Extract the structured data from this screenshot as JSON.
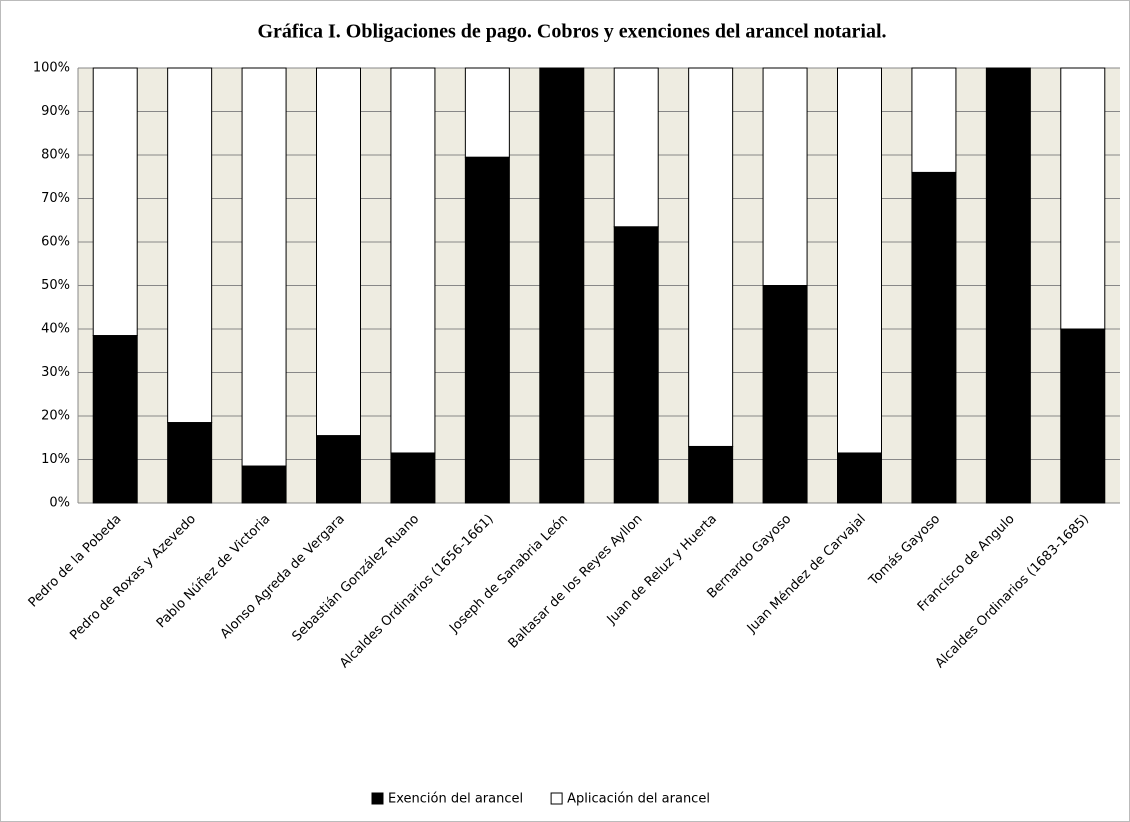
{
  "chart_data": {
    "type": "stacked_bar",
    "title": "Gráfica I. Obligaciones de pago. Cobros y exenciones del arancel notarial.",
    "categories": [
      "Pedro de la Pobeda",
      "Pedro de Roxas y Azevedo",
      "Pablo Núñez de Victoria",
      "Alonso Agreda de Vergara",
      "Sebastián González Ruano",
      "Alcaldes Ordinarios (1656-1661)",
      "Joseph de Sanabria León",
      "Baltasar de los Reyes Ayllon",
      "Juan de Reluz y Huerta",
      "Bernardo Gayoso",
      "Juan Méndez de Carvajal",
      "Tomás Gayoso",
      "Francisco de Angulo",
      "Alcaldes Ordinarios (1683-1685)"
    ],
    "series": [
      {
        "name": "Exención del arancel",
        "color": "#000000",
        "values": [
          38.5,
          18.5,
          8.5,
          15.5,
          11.5,
          79.5,
          100,
          63.5,
          13,
          50,
          11.5,
          76,
          100,
          40
        ]
      },
      {
        "name": "Aplicación del arancel",
        "color": "#ffffff",
        "values": [
          61.5,
          81.5,
          91.5,
          84.5,
          88.5,
          20.5,
          0,
          36.5,
          87,
          50,
          88.5,
          24,
          0,
          60
        ]
      }
    ],
    "ylim": [
      0,
      100
    ],
    "yticks": [
      {
        "value": 0,
        "label": "0%"
      },
      {
        "value": 10,
        "label": "10%"
      },
      {
        "value": 20,
        "label": "20%"
      },
      {
        "value": 30,
        "label": "30%"
      },
      {
        "value": 40,
        "label": "40%"
      },
      {
        "value": 50,
        "label": "50%"
      },
      {
        "value": 60,
        "label": "60%"
      },
      {
        "value": 70,
        "label": "70%"
      },
      {
        "value": 80,
        "label": "80%"
      },
      {
        "value": 90,
        "label": "90%"
      },
      {
        "value": 100,
        "label": "100%"
      }
    ],
    "grid": true,
    "legend": "bottom"
  }
}
